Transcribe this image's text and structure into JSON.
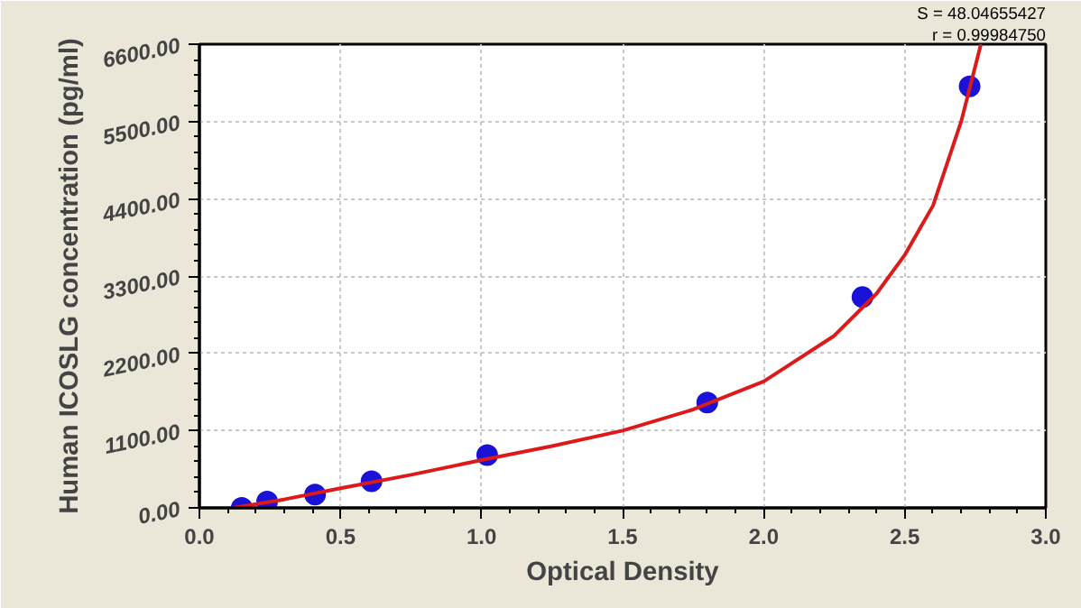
{
  "chart_data": {
    "type": "scatter",
    "xlabel": "Optical Density",
    "ylabel": "Human ICOSLG concentration (pg/ml)",
    "annotations": [
      "S = 48.04655427",
      "r = 0.99984750"
    ],
    "series": [
      {
        "color": "#1a12d6",
        "marker": "circle",
        "x": [
          0.15,
          0.24,
          0.41,
          0.61,
          1.02,
          1.8,
          2.35,
          2.73
        ],
        "values": [
          0,
          90,
          190,
          380,
          750,
          1500,
          3000,
          6000
        ]
      },
      {
        "type": "line",
        "color": "#dd1a1a",
        "marker": "none",
        "line_style": "solid",
        "x": [
          0.12,
          0.3,
          0.5,
          0.75,
          1.0,
          1.25,
          1.5,
          1.75,
          2.0,
          2.25,
          2.4,
          2.5,
          2.6,
          2.7,
          2.77
        ],
        "values": [
          0,
          120,
          280,
          470,
          680,
          880,
          1100,
          1400,
          1800,
          2450,
          3050,
          3600,
          4300,
          5500,
          6600
        ]
      }
    ],
    "xlim": [
      0,
      3
    ],
    "ylim": [
      0,
      6600
    ],
    "xticks": [
      {
        "value": 0,
        "label": "0.0"
      },
      0.5,
      {
        "value": 1,
        "label": "1.0"
      },
      1.5,
      {
        "value": 2,
        "label": "2.0"
      },
      2.5,
      {
        "value": 3,
        "label": "3.0"
      }
    ],
    "yticks": [
      {
        "value": 0,
        "label": "0.00"
      },
      {
        "value": 1100,
        "label": "1100.00"
      },
      {
        "value": 2200,
        "label": "2200.00"
      },
      {
        "value": 3300,
        "label": "3300.00"
      },
      {
        "value": 4400,
        "label": "4400.00"
      },
      {
        "value": 5500,
        "label": "5500.00"
      },
      {
        "value": 6600,
        "label": "6600.00"
      }
    ],
    "grid": true
  }
}
